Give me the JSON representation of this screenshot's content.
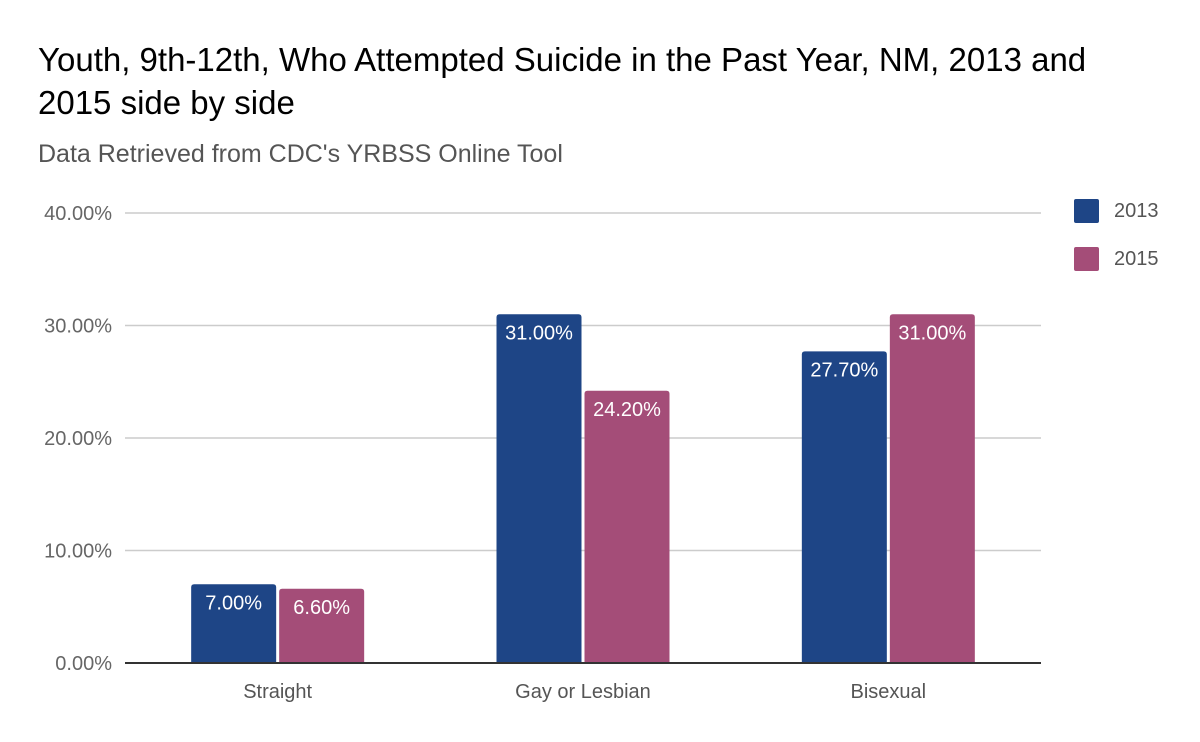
{
  "chart_data": {
    "type": "bar",
    "title": "Youth, 9th-12th, Who Attempted Suicide in the Past Year, NM, 2013 and 2015 side by side",
    "subtitle": "Data Retrieved from CDC's YRBSS Online Tool",
    "categories": [
      "Straight",
      "Gay or Lesbian",
      "Bisexual"
    ],
    "series": [
      {
        "name": "2013",
        "color": "#1e4586",
        "values": [
          7.0,
          31.0,
          27.7
        ],
        "labels": [
          "7.00%",
          "31.00%",
          "27.70%"
        ]
      },
      {
        "name": "2015",
        "color": "#a44d78",
        "values": [
          6.6,
          24.2,
          31.0
        ],
        "labels": [
          "6.60%",
          "24.20%",
          "31.00%"
        ]
      }
    ],
    "y_ticks": [
      "0.00%",
      "10.00%",
      "20.00%",
      "30.00%",
      "40.00%"
    ],
    "ylim": [
      0,
      40
    ],
    "grid": true,
    "legend_position": "right"
  }
}
